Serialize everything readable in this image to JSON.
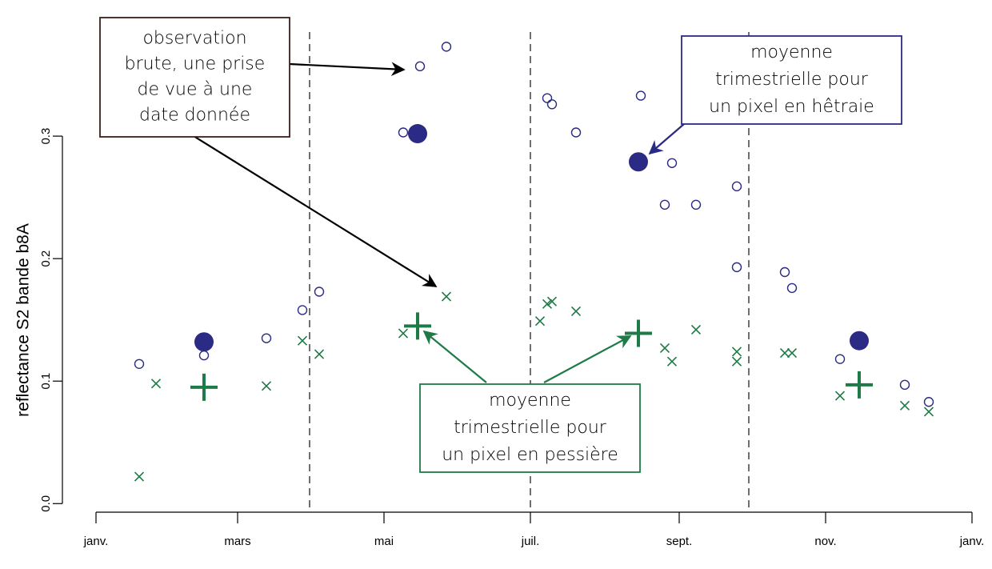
{
  "chart_data": {
    "type": "scatter",
    "y_label": "reflectance S2 bande b8A",
    "xlim": [
      -7,
      372
    ],
    "ylim": [
      -0.007,
      0.385
    ],
    "xticks": [
      {
        "value": 0,
        "label": "janv."
      },
      {
        "value": 59,
        "label": "mars"
      },
      {
        "value": 120,
        "label": "mai"
      },
      {
        "value": 181,
        "label": "juil."
      },
      {
        "value": 243,
        "label": "sept."
      },
      {
        "value": 304,
        "label": "nov."
      },
      {
        "value": 365,
        "label": "janv."
      }
    ],
    "yticks": [
      {
        "value": 0,
        "label": "0.0"
      },
      0.1,
      0.2,
      0.3
    ],
    "quarter_lines": [
      89,
      181,
      272
    ],
    "series": [
      {
        "marker": "circle-open",
        "color": "#2b2a84",
        "x": [
          18,
          45,
          71,
          86,
          93,
          128,
          135,
          146,
          188,
          190,
          200,
          227,
          240,
          237,
          250,
          267,
          267,
          287,
          290,
          310,
          337,
          347
        ],
        "values": [
          0.114,
          0.121,
          0.135,
          0.158,
          0.173,
          0.303,
          0.357,
          0.373,
          0.331,
          0.326,
          0.303,
          0.333,
          0.278,
          0.244,
          0.244,
          0.259,
          0.193,
          0.189,
          0.176,
          0.118,
          0.097,
          0.083
        ]
      },
      {
        "marker": "x",
        "color": "#1e7a46",
        "x": [
          18,
          25,
          71,
          86,
          93,
          128,
          146,
          185,
          188,
          190,
          200,
          237,
          240,
          250,
          267,
          267,
          287,
          290,
          310,
          337,
          347
        ],
        "values": [
          0.022,
          0.098,
          0.096,
          0.133,
          0.122,
          0.139,
          0.169,
          0.149,
          0.163,
          0.165,
          0.157,
          0.127,
          0.116,
          0.142,
          0.124,
          0.116,
          0.123,
          0.123,
          0.088,
          0.08,
          0.075
        ]
      },
      {
        "marker": "circle-filled",
        "color": "#2b2a84",
        "x": [
          45,
          134,
          226,
          318
        ],
        "values": [
          0.132,
          0.302,
          0.279,
          0.133
        ]
      },
      {
        "marker": "plus",
        "color": "#1e7a46",
        "x": [
          45,
          134,
          226,
          318
        ],
        "values": [
          0.095,
          0.145,
          0.139,
          0.097
        ]
      }
    ],
    "annotations": [
      {
        "color": "#3a1f1a",
        "lines": [
          "observation",
          "brute, une prise",
          "de vue à une",
          "date donnée"
        ]
      },
      {
        "color": "#2b2a84",
        "lines": [
          "moyenne",
          "trimestrielle pour",
          "un pixel en hêtraie"
        ]
      },
      {
        "color": "#1e7a46",
        "lines": [
          "moyenne",
          "trimestrielle pour",
          "un pixel en pessière"
        ]
      }
    ]
  }
}
